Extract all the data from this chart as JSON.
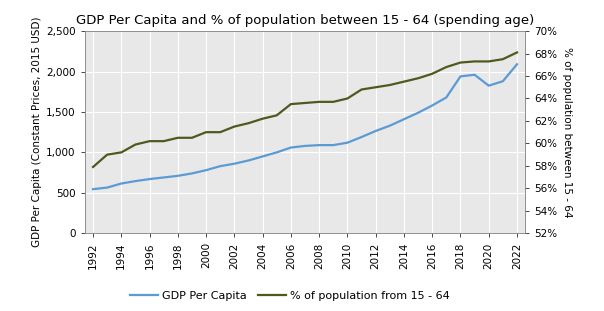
{
  "title": "GDP Per Capita and % of population between 15 - 64 (spending age)",
  "ylabel_left": "GDP Per Capita (Constant Prices, 2015 USD)",
  "ylabel_right": "% of population between 15 - 64",
  "years": [
    1992,
    1993,
    1994,
    1995,
    1996,
    1997,
    1998,
    1999,
    2000,
    2001,
    2002,
    2003,
    2004,
    2005,
    2006,
    2007,
    2008,
    2009,
    2010,
    2011,
    2012,
    2013,
    2014,
    2015,
    2016,
    2017,
    2018,
    2019,
    2020,
    2021,
    2022
  ],
  "gdp_per_capita": [
    545,
    565,
    615,
    645,
    670,
    690,
    710,
    740,
    780,
    830,
    860,
    900,
    950,
    1000,
    1060,
    1080,
    1090,
    1090,
    1120,
    1190,
    1265,
    1330,
    1410,
    1490,
    1580,
    1680,
    1940,
    1960,
    1825,
    1880,
    2090
  ],
  "pct_population": [
    57.9,
    59.0,
    59.2,
    59.9,
    60.2,
    60.2,
    60.5,
    60.5,
    61.0,
    61.0,
    61.5,
    61.8,
    62.2,
    62.5,
    63.5,
    63.6,
    63.7,
    63.7,
    64.0,
    64.8,
    65.0,
    65.2,
    65.5,
    65.8,
    66.2,
    66.8,
    67.2,
    67.3,
    67.3,
    67.5,
    68.1
  ],
  "gdp_color": "#5B9BD5",
  "pct_color": "#4D5A1E",
  "ylim_left": [
    0,
    2500
  ],
  "ylim_right": [
    52,
    70
  ],
  "yticks_left": [
    0,
    500,
    1000,
    1500,
    2000,
    2500
  ],
  "yticks_right": [
    52,
    54,
    56,
    58,
    60,
    62,
    64,
    66,
    68,
    70
  ],
  "legend_gdp": "GDP Per Capita",
  "legend_pct": "% of population from 15 - 64",
  "plot_bg_color": "#E8E8E8",
  "fig_bg_color": "#ffffff",
  "grid_color": "#ffffff",
  "title_fontsize": 9.5,
  "label_fontsize": 7.5,
  "tick_fontsize": 7.5,
  "legend_fontsize": 8
}
